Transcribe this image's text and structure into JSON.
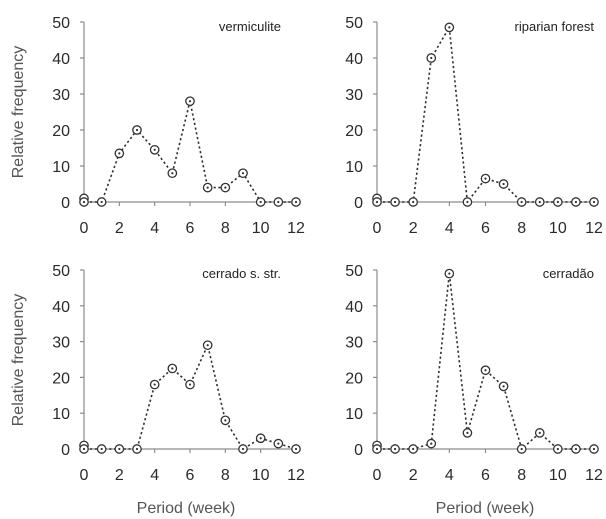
{
  "figure": {
    "ylabel": "Relative frequency",
    "xlabel": "Period (week)"
  },
  "chart_data": [
    {
      "type": "line",
      "title": "vermiculite",
      "x": [
        0,
        0,
        1,
        2,
        3,
        4,
        5,
        6,
        7,
        8,
        9,
        10,
        11,
        12
      ],
      "values": [
        1,
        0,
        0,
        13.5,
        20,
        14.5,
        8,
        28,
        4,
        4,
        8,
        0,
        0,
        0
      ],
      "xlim": [
        0,
        12
      ],
      "ylim": [
        0,
        50
      ],
      "xticks": [
        "0",
        "2",
        "4",
        "6",
        "8",
        "10",
        "12"
      ],
      "yticks": [
        "0",
        "10",
        "20",
        "30",
        "40",
        "50"
      ]
    },
    {
      "type": "line",
      "title": "riparian forest",
      "x": [
        0,
        0,
        1,
        2,
        3,
        4,
        5,
        6,
        7,
        8,
        9,
        10,
        11,
        12
      ],
      "values": [
        1,
        0,
        0,
        0,
        40,
        48.5,
        0,
        6.5,
        5,
        0,
        0,
        0,
        0,
        0
      ],
      "xlim": [
        0,
        12
      ],
      "ylim": [
        0,
        50
      ],
      "xticks": [
        "0",
        "2",
        "4",
        "6",
        "8",
        "10",
        "12"
      ],
      "yticks": [
        "0",
        "10",
        "20",
        "30",
        "40",
        "50"
      ]
    },
    {
      "type": "line",
      "title": "cerrado s. str.",
      "x": [
        0,
        0,
        1,
        2,
        3,
        4,
        5,
        6,
        7,
        8,
        9,
        10,
        11,
        12
      ],
      "values": [
        1,
        0,
        0,
        0,
        0,
        18,
        22.5,
        18,
        29,
        8,
        0,
        3,
        1.5,
        0
      ],
      "xlim": [
        0,
        12
      ],
      "ylim": [
        0,
        50
      ],
      "xticks": [
        "0",
        "2",
        "4",
        "6",
        "8",
        "10",
        "12"
      ],
      "yticks": [
        "0",
        "10",
        "20",
        "30",
        "40",
        "50"
      ]
    },
    {
      "type": "line",
      "title": "cerradão",
      "x": [
        0,
        0,
        1,
        2,
        3,
        4,
        5,
        6,
        7,
        8,
        9,
        10,
        11,
        12
      ],
      "values": [
        1,
        0,
        0,
        0,
        1.5,
        49,
        4.5,
        22,
        17.5,
        0,
        4.5,
        0,
        0,
        0
      ],
      "xlim": [
        0,
        12
      ],
      "ylim": [
        0,
        50
      ],
      "xticks": [
        "0",
        "2",
        "4",
        "6",
        "8",
        "10",
        "12"
      ],
      "yticks": [
        "0",
        "10",
        "20",
        "30",
        "40",
        "50"
      ]
    }
  ]
}
